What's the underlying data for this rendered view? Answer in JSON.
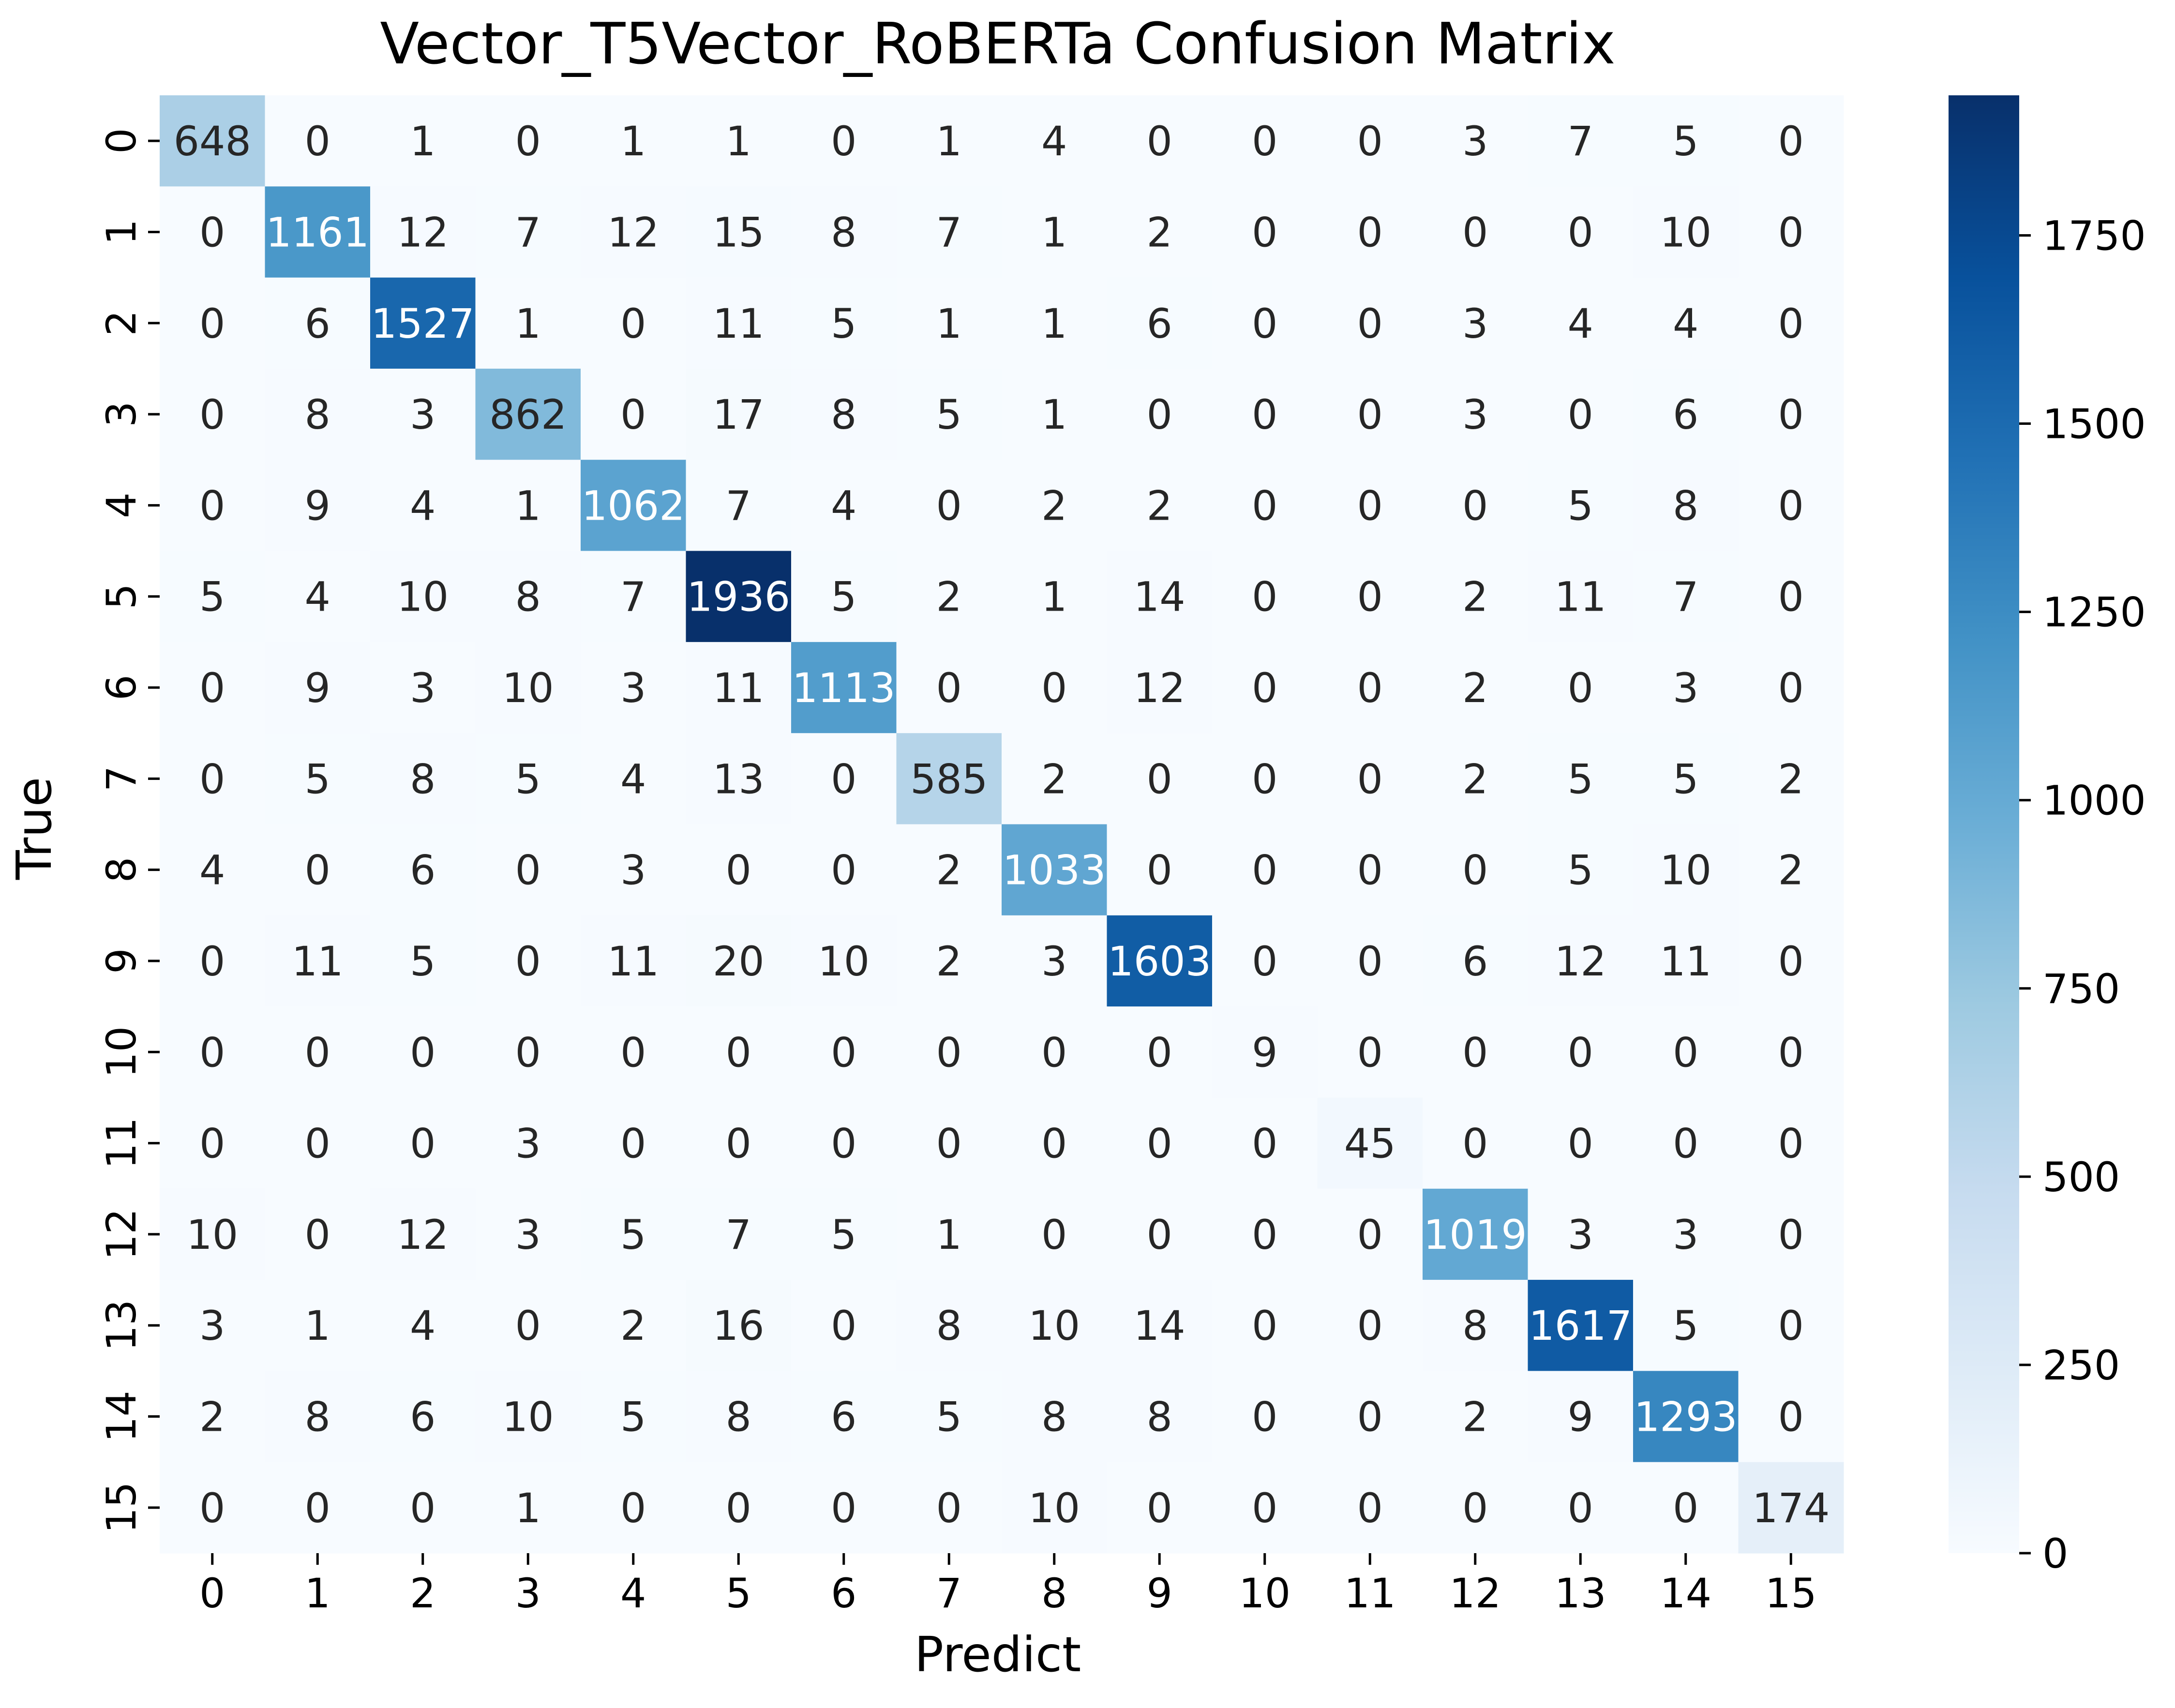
{
  "chart_data": {
    "type": "heatmap",
    "title": "Vector_T5Vector_RoBERTa Confusion Matrix",
    "xlabel": "Predict",
    "ylabel": "True",
    "x_categories": [
      "0",
      "1",
      "2",
      "3",
      "4",
      "5",
      "6",
      "7",
      "8",
      "9",
      "10",
      "11",
      "12",
      "13",
      "14",
      "15"
    ],
    "y_categories": [
      "0",
      "1",
      "2",
      "3",
      "4",
      "5",
      "6",
      "7",
      "8",
      "9",
      "10",
      "11",
      "12",
      "13",
      "14",
      "15"
    ],
    "values": [
      [
        648,
        0,
        1,
        0,
        1,
        1,
        0,
        1,
        4,
        0,
        0,
        0,
        3,
        7,
        5,
        0
      ],
      [
        0,
        1161,
        12,
        7,
        12,
        15,
        8,
        7,
        1,
        2,
        0,
        0,
        0,
        0,
        10,
        0
      ],
      [
        0,
        6,
        1527,
        1,
        0,
        11,
        5,
        1,
        1,
        6,
        0,
        0,
        3,
        4,
        4,
        0
      ],
      [
        0,
        8,
        3,
        862,
        0,
        17,
        8,
        5,
        1,
        0,
        0,
        0,
        3,
        0,
        6,
        0
      ],
      [
        0,
        9,
        4,
        1,
        1062,
        7,
        4,
        0,
        2,
        2,
        0,
        0,
        0,
        5,
        8,
        0
      ],
      [
        5,
        4,
        10,
        8,
        7,
        1936,
        5,
        2,
        1,
        14,
        0,
        0,
        2,
        11,
        7,
        0
      ],
      [
        0,
        9,
        3,
        10,
        3,
        11,
        1113,
        0,
        0,
        12,
        0,
        0,
        2,
        0,
        3,
        0
      ],
      [
        0,
        5,
        8,
        5,
        4,
        13,
        0,
        585,
        2,
        0,
        0,
        0,
        2,
        5,
        5,
        2
      ],
      [
        4,
        0,
        6,
        0,
        3,
        0,
        0,
        2,
        1033,
        0,
        0,
        0,
        0,
        5,
        10,
        2
      ],
      [
        0,
        11,
        5,
        0,
        11,
        20,
        10,
        2,
        3,
        1603,
        0,
        0,
        6,
        12,
        11,
        0
      ],
      [
        0,
        0,
        0,
        0,
        0,
        0,
        0,
        0,
        0,
        0,
        9,
        0,
        0,
        0,
        0,
        0
      ],
      [
        0,
        0,
        0,
        3,
        0,
        0,
        0,
        0,
        0,
        0,
        0,
        45,
        0,
        0,
        0,
        0
      ],
      [
        10,
        0,
        12,
        3,
        5,
        7,
        5,
        1,
        0,
        0,
        0,
        0,
        1019,
        3,
        3,
        0
      ],
      [
        3,
        1,
        4,
        0,
        2,
        16,
        0,
        8,
        10,
        14,
        0,
        0,
        8,
        1617,
        5,
        0
      ],
      [
        2,
        8,
        6,
        10,
        5,
        8,
        6,
        5,
        8,
        8,
        0,
        0,
        2,
        9,
        1293,
        0
      ],
      [
        0,
        0,
        0,
        1,
        0,
        0,
        0,
        0,
        10,
        0,
        0,
        0,
        0,
        0,
        0,
        174
      ]
    ],
    "colormap": "Blues",
    "colormap_stops": [
      "#f7fbff",
      "#deebf7",
      "#c6dbef",
      "#9ecae1",
      "#6baed6",
      "#4292c6",
      "#2171b5",
      "#08519c",
      "#08306b"
    ],
    "vmin": 0,
    "vmax": 1936,
    "colorbar_ticks": [
      0,
      250,
      500,
      750,
      1000,
      1250,
      1500,
      1750
    ],
    "text_color_dark": "#262626",
    "text_color_light": "#ffffff",
    "annotation_threshold": 968
  }
}
